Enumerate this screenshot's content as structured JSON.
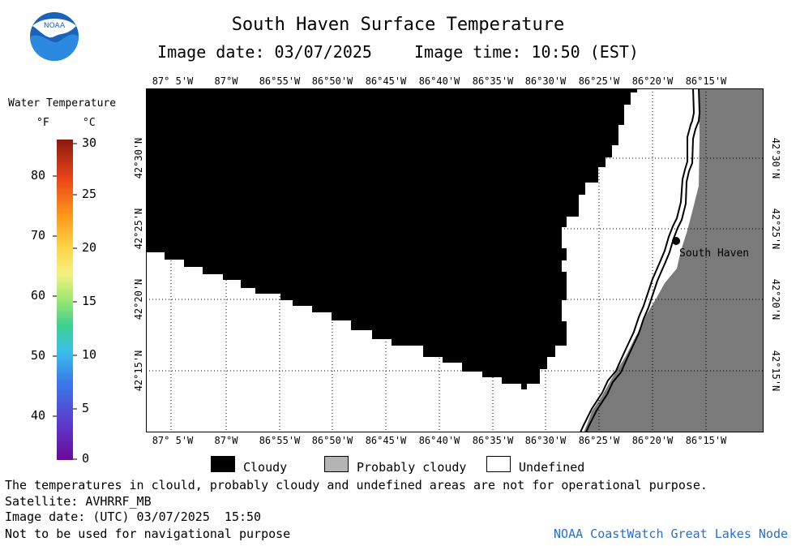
{
  "header": {
    "title": "South Haven Surface Temperature",
    "image_date": "Image date: 03/07/2025",
    "image_time": "Image time: 10:50 (EST)",
    "logo_text": "NOAA"
  },
  "legend": {
    "title": "Water Temperature",
    "unit_f": "°F",
    "unit_c": "°C",
    "f_ticks": [
      "80",
      "70",
      "60",
      "50",
      "40"
    ],
    "c_ticks": [
      "30",
      "25",
      "20",
      "15",
      "10",
      "5",
      "0"
    ]
  },
  "map": {
    "lon_labels": [
      "87° 5'W",
      "87°W",
      "86°55'W",
      "86°50'W",
      "86°45'W",
      "86°40'W",
      "86°35'W",
      "86°30'W",
      "86°25'W",
      "86°20'W",
      "86°15'W"
    ],
    "lat_labels": [
      "42°30'N",
      "42°25'N",
      "42°20'N",
      "42°15'N"
    ],
    "city_label": "South Haven",
    "colors": {
      "cloud": "#000000",
      "probably_cloudy": "#b4b4b4",
      "undefined": "#ffffff",
      "land": "#7a7a7a"
    }
  },
  "key": {
    "cloudy": "Cloudy",
    "probably_cloudy": "Probably cloudy",
    "undefined": "Undefined"
  },
  "footer": {
    "disclaimer": "The temperatures in clould, probably cloudy and undefined areas are not for operational purpose.",
    "satellite": "Satellite: AVHRRF_MB",
    "utc_date": "Image date: (UTC) 03/07/2025  15:50",
    "nav_note": "Not to be used for navigational purpose",
    "credit": "NOAA CoastWatch Great Lakes Node"
  }
}
